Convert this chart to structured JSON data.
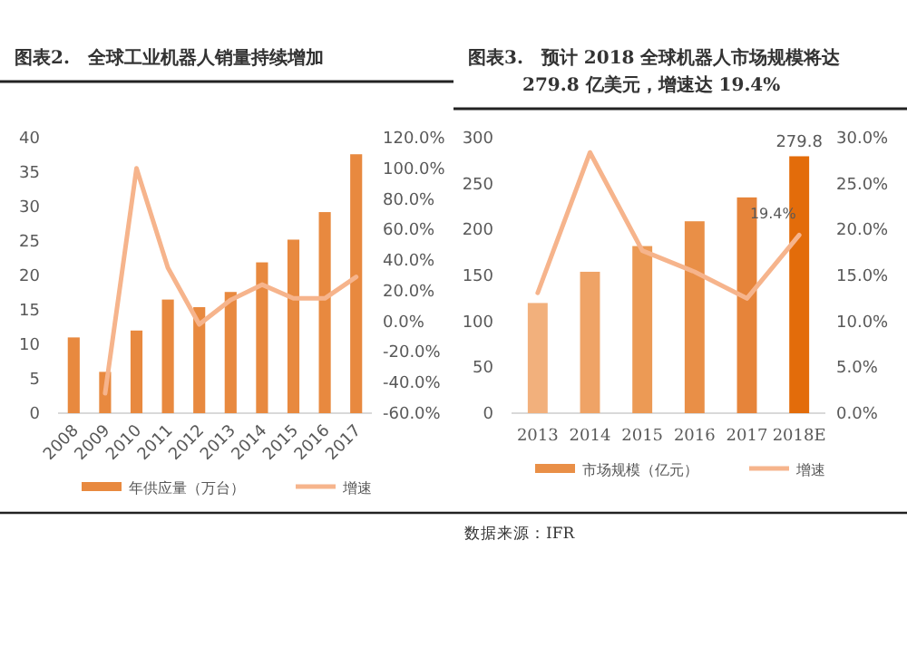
{
  "chart_data": [
    {
      "type": "bar",
      "title": "图表2.　全球工业机器人销量持续增加",
      "categories": [
        "2008",
        "2009",
        "2010",
        "2011",
        "2012",
        "2013",
        "2014",
        "2015",
        "2016",
        "2017"
      ],
      "legend": "bottom",
      "ylim": [
        0,
        40
      ],
      "yticks": [
        0,
        5,
        10,
        15,
        20,
        25,
        30,
        35,
        40
      ],
      "y2lim": [
        -60,
        120
      ],
      "y2ticks": [
        {
          "value": -60,
          "label": "-60.0%"
        },
        {
          "value": -40,
          "label": "-40.0%"
        },
        {
          "value": -20,
          "label": "-20.0%"
        },
        {
          "value": 0,
          "label": "0.0%"
        },
        {
          "value": 20,
          "label": "20.0%"
        },
        {
          "value": 40,
          "label": "40.0%"
        },
        {
          "value": 60,
          "label": "60.0%"
        },
        {
          "value": 80,
          "label": "80.0%"
        },
        {
          "value": 100,
          "label": "100.0%"
        },
        {
          "value": 120,
          "label": "120.0%"
        }
      ],
      "series": [
        {
          "name": "年供应量（万台）",
          "color": "#e8893f",
          "values": [
            11,
            6,
            12,
            16.5,
            15.4,
            17.6,
            21.9,
            25.2,
            29.2,
            37.6
          ]
        },
        {
          "name": "增速",
          "type": "line",
          "axis": "y2",
          "color": "#f6b48c",
          "values": [
            null,
            -47,
            100,
            35,
            -2,
            14,
            24,
            15,
            15,
            29
          ]
        }
      ]
    },
    {
      "type": "bar",
      "title": "图表3.　预计 2018 全球机器人市场规模将达 279.8 亿美元，增速达 19.4%",
      "categories": [
        "2013",
        "2014",
        "2015",
        "2016",
        "2017",
        "2018E"
      ],
      "legend": "bottom",
      "ylim": [
        0,
        300
      ],
      "yticks": [
        0,
        50,
        100,
        150,
        200,
        250,
        300
      ],
      "y2lim": [
        0,
        30
      ],
      "y2ticks": [
        {
          "value": 0,
          "label": "0.0%"
        },
        {
          "value": 5,
          "label": "5.0%"
        },
        {
          "value": 10,
          "label": "10.0%"
        },
        {
          "value": 15,
          "label": "15.0%"
        },
        {
          "value": 20,
          "label": "20.0%"
        },
        {
          "value": 25,
          "label": "25.0%"
        },
        {
          "value": 30,
          "label": "30.0%"
        }
      ],
      "annotations": [
        "数据来源：IFR"
      ],
      "series": [
        {
          "name": "市场规模（亿元）",
          "colors": [
            "#f2b07c",
            "#efa366",
            "#ec9a55",
            "#e98f47",
            "#e6843a",
            "#e36c0a"
          ],
          "values": [
            120,
            154,
            182,
            209,
            235,
            279.8
          ],
          "value_labels": [
            null,
            null,
            null,
            null,
            null,
            "279.8"
          ]
        },
        {
          "name": "增速",
          "type": "line",
          "axis": "y2",
          "color": "#f6b48c",
          "values": [
            13.1,
            28.4,
            17.7,
            15.4,
            12.5,
            19.4
          ],
          "value_labels": [
            null,
            null,
            null,
            null,
            null,
            "19.4%"
          ]
        }
      ]
    }
  ]
}
